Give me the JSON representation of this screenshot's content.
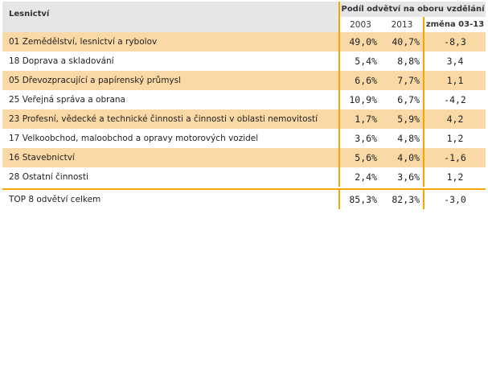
{
  "header": {
    "title": "Lesnictví",
    "group": "Podíl odvětví na oboru vzdělání",
    "col_2003": "2003",
    "col_2013": "2013",
    "col_change": "změna 03-13"
  },
  "rows": [
    {
      "label": "01 Zemědělství, lesnictví a rybolov",
      "v2003": "49,0%",
      "v2013": "40,7%",
      "change": "-8,3"
    },
    {
      "label": "18 Doprava a skladování",
      "v2003": "5,4%",
      "v2013": "8,8%",
      "change": "3,4"
    },
    {
      "label": "05 Dřevozpracující a papírenský průmysl",
      "v2003": "6,6%",
      "v2013": "7,7%",
      "change": "1,1"
    },
    {
      "label": "25 Veřejná správa a obrana",
      "v2003": "10,9%",
      "v2013": "6,7%",
      "change": "-4,2"
    },
    {
      "label": "23 Profesní, vědecké a technické činnosti a činnosti v oblasti nemovitostí",
      "v2003": "1,7%",
      "v2013": "5,9%",
      "change": "4,2"
    },
    {
      "label": "17 Velkoobchod, maloobchod a opravy motorových vozidel",
      "v2003": "3,6%",
      "v2013": "4,8%",
      "change": "1,2"
    },
    {
      "label": "16 Stavebnictví",
      "v2003": "5,6%",
      "v2013": "4,0%",
      "change": "-1,6"
    },
    {
      "label": "28 Ostatní činnosti",
      "v2003": "2,4%",
      "v2013": "3,6%",
      "change": "1,2"
    }
  ],
  "total": {
    "label": "TOP 8 odvětví celkem",
    "v2003": "85,3%",
    "v2013": "82,3%",
    "change": "-3,0"
  },
  "colors": {
    "accent": "#f0a800",
    "band": "#fbd9a6",
    "header_bg": "#e6e6e6"
  }
}
